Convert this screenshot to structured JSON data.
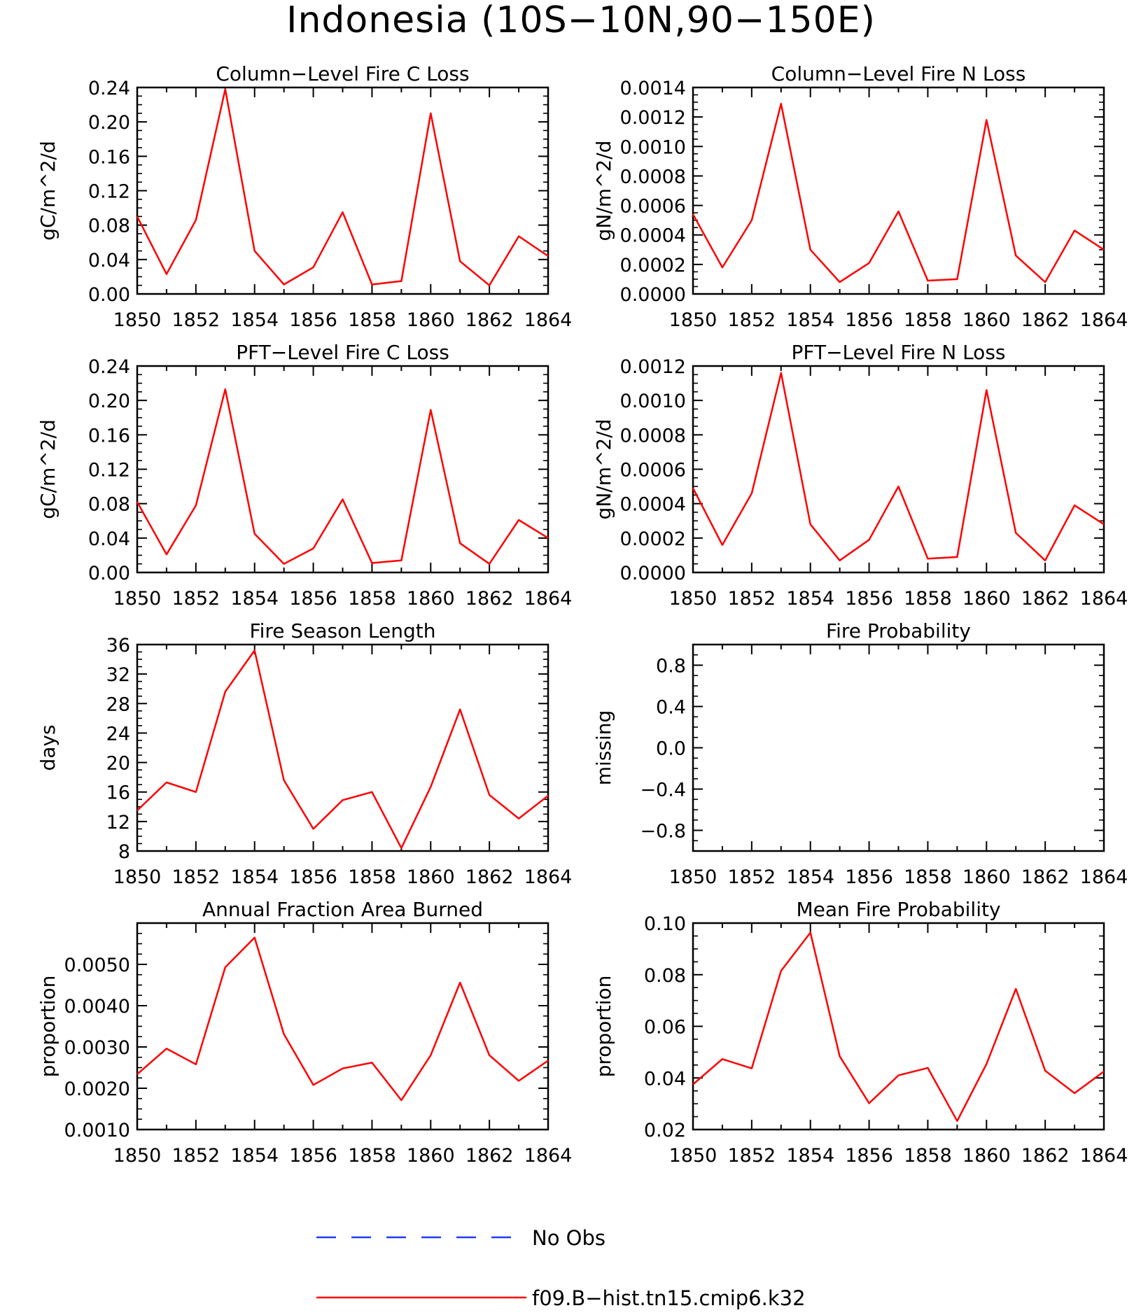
{
  "figure": {
    "title": "Indonesia (10S−10N,90−150E)"
  },
  "legend": {
    "items": [
      {
        "label": "No Obs",
        "color": "#1e3cff",
        "dash": true
      },
      {
        "label": "f09.B−hist.tn15.cmip6.k32",
        "color": "#ff0000",
        "dash": false
      }
    ]
  },
  "colors": {
    "series": "#ff0000",
    "obs": "#1e3cff",
    "axes": "#000000"
  },
  "chart_data": [
    {
      "type": "line",
      "title": "Column−Level Fire C Loss",
      "ylabel": "gC/m^2/d",
      "x": [
        1850,
        1851,
        1852,
        1853,
        1854,
        1855,
        1856,
        1857,
        1858,
        1859,
        1860,
        1861,
        1862,
        1863,
        1864
      ],
      "xlim": [
        1850,
        1864
      ],
      "xticks": [
        "1850",
        "1852",
        "1854",
        "1856",
        "1858",
        "1860",
        "1862",
        "1864"
      ],
      "ylim": [
        0,
        0.24
      ],
      "yticks": [
        "0.00",
        "0.04",
        "0.08",
        "0.12",
        "0.16",
        "0.20",
        "0.24"
      ],
      "series": [
        {
          "name": "f09.B−hist.tn15.cmip6.k32",
          "values": [
            0.09,
            0.023,
            0.086,
            0.238,
            0.05,
            0.011,
            0.031,
            0.095,
            0.011,
            0.015,
            0.21,
            0.038,
            0.01,
            0.067,
            0.044
          ]
        }
      ]
    },
    {
      "type": "line",
      "title": "Column−Level Fire N Loss",
      "ylabel": "gN/m^2/d",
      "x": [
        1850,
        1851,
        1852,
        1853,
        1854,
        1855,
        1856,
        1857,
        1858,
        1859,
        1860,
        1861,
        1862,
        1863,
        1864
      ],
      "xlim": [
        1850,
        1864
      ],
      "xticks": [
        "1850",
        "1852",
        "1854",
        "1856",
        "1858",
        "1860",
        "1862",
        "1864"
      ],
      "ylim": [
        0,
        0.0014
      ],
      "yticks": [
        "0.0000",
        "0.0002",
        "0.0004",
        "0.0006",
        "0.0008",
        "0.0010",
        "0.0012",
        "0.0014"
      ],
      "series": [
        {
          "name": "f09.B−hist.tn15.cmip6.k32",
          "values": [
            0.00054,
            0.00018,
            0.0005,
            0.00129,
            0.0003,
            8e-05,
            0.00021,
            0.00056,
            9e-05,
            0.0001,
            0.00118,
            0.00026,
            8e-05,
            0.00043,
            0.0003
          ]
        }
      ]
    },
    {
      "type": "line",
      "title": "PFT−Level Fire C Loss",
      "ylabel": "gC/m^2/d",
      "x": [
        1850,
        1851,
        1852,
        1853,
        1854,
        1855,
        1856,
        1857,
        1858,
        1859,
        1860,
        1861,
        1862,
        1863,
        1864
      ],
      "xlim": [
        1850,
        1864
      ],
      "xticks": [
        "1850",
        "1852",
        "1854",
        "1856",
        "1858",
        "1860",
        "1862",
        "1864"
      ],
      "ylim": [
        0,
        0.24
      ],
      "yticks": [
        "0.00",
        "0.04",
        "0.08",
        "0.12",
        "0.16",
        "0.20",
        "0.24"
      ],
      "series": [
        {
          "name": "f09.B−hist.tn15.cmip6.k32",
          "values": [
            0.082,
            0.021,
            0.078,
            0.213,
            0.045,
            0.01,
            0.028,
            0.085,
            0.011,
            0.014,
            0.189,
            0.034,
            0.01,
            0.061,
            0.04
          ]
        }
      ]
    },
    {
      "type": "line",
      "title": "PFT−Level Fire N Loss",
      "ylabel": "gN/m^2/d",
      "x": [
        1850,
        1851,
        1852,
        1853,
        1854,
        1855,
        1856,
        1857,
        1858,
        1859,
        1860,
        1861,
        1862,
        1863,
        1864
      ],
      "xlim": [
        1850,
        1864
      ],
      "xticks": [
        "1850",
        "1852",
        "1854",
        "1856",
        "1858",
        "1860",
        "1862",
        "1864"
      ],
      "ylim": [
        0,
        0.0012
      ],
      "yticks": [
        "0.0000",
        "0.0002",
        "0.0004",
        "0.0006",
        "0.0008",
        "0.0010",
        "0.0012"
      ],
      "series": [
        {
          "name": "f09.B−hist.tn15.cmip6.k32",
          "values": [
            0.00049,
            0.00016,
            0.00046,
            0.00116,
            0.00028,
            7e-05,
            0.00019,
            0.0005,
            8e-05,
            9e-05,
            0.00106,
            0.00023,
            7e-05,
            0.00039,
            0.00028
          ]
        }
      ]
    },
    {
      "type": "line",
      "title": "Fire Season Length",
      "ylabel": "days",
      "x": [
        1850,
        1851,
        1852,
        1853,
        1854,
        1855,
        1856,
        1857,
        1858,
        1859,
        1860,
        1861,
        1862,
        1863,
        1864
      ],
      "xlim": [
        1850,
        1864
      ],
      "xticks": [
        "1850",
        "1852",
        "1854",
        "1856",
        "1858",
        "1860",
        "1862",
        "1864"
      ],
      "ylim": [
        8,
        36
      ],
      "yticks": [
        "8",
        "12",
        "16",
        "20",
        "24",
        "28",
        "32",
        "36"
      ],
      "series": [
        {
          "name": "f09.B−hist.tn15.cmip6.k32",
          "values": [
            13.5,
            17.3,
            16.0,
            29.6,
            35.2,
            17.6,
            11.0,
            14.9,
            16.0,
            8.4,
            16.7,
            27.2,
            15.6,
            12.4,
            15.5
          ]
        }
      ]
    },
    {
      "type": "line",
      "title": "Fire Probability",
      "ylabel": "missing",
      "x": [],
      "xlim": [
        1850,
        1864
      ],
      "xticks": [
        "1850",
        "1852",
        "1854",
        "1856",
        "1858",
        "1860",
        "1862",
        "1864"
      ],
      "ylim": [
        -1.0,
        1.0
      ],
      "yticks": [
        "−0.8",
        "−0.4",
        "0.0",
        "0.4",
        "0.8"
      ],
      "ytick_values": [
        -0.8,
        -0.4,
        0.0,
        0.4,
        0.8
      ],
      "series": []
    },
    {
      "type": "line",
      "title": "Annual Fraction Area Burned",
      "ylabel": "proportion",
      "x": [
        1850,
        1851,
        1852,
        1853,
        1854,
        1855,
        1856,
        1857,
        1858,
        1859,
        1860,
        1861,
        1862,
        1863,
        1864
      ],
      "xlim": [
        1850,
        1864
      ],
      "xticks": [
        "1850",
        "1852",
        "1854",
        "1856",
        "1858",
        "1860",
        "1862",
        "1864"
      ],
      "ylim": [
        0.001,
        0.006
      ],
      "yticks": [
        "0.0010",
        "0.0020",
        "0.0030",
        "0.0040",
        "0.0050"
      ],
      "ytick_values": [
        0.001,
        0.002,
        0.003,
        0.004,
        0.005
      ],
      "series": [
        {
          "name": "f09.B−hist.tn15.cmip6.k32",
          "values": [
            0.00234,
            0.00296,
            0.00258,
            0.00493,
            0.00565,
            0.00331,
            0.00208,
            0.00248,
            0.00262,
            0.00171,
            0.0028,
            0.00456,
            0.0028,
            0.00218,
            0.00267
          ]
        }
      ]
    },
    {
      "type": "line",
      "title": "Mean Fire Probability",
      "ylabel": "proportion",
      "x": [
        1850,
        1851,
        1852,
        1853,
        1854,
        1855,
        1856,
        1857,
        1858,
        1859,
        1860,
        1861,
        1862,
        1863,
        1864
      ],
      "xlim": [
        1850,
        1864
      ],
      "xticks": [
        "1850",
        "1852",
        "1854",
        "1856",
        "1858",
        "1860",
        "1862",
        "1864"
      ],
      "ylim": [
        0.02,
        0.1
      ],
      "yticks": [
        "0.02",
        "0.04",
        "0.06",
        "0.08",
        "0.10"
      ],
      "series": [
        {
          "name": "f09.B−hist.tn15.cmip6.k32",
          "values": [
            0.0375,
            0.0473,
            0.0437,
            0.0815,
            0.0963,
            0.0484,
            0.0302,
            0.041,
            0.0439,
            0.0233,
            0.0454,
            0.0745,
            0.0428,
            0.0341,
            0.0425
          ]
        }
      ]
    }
  ]
}
